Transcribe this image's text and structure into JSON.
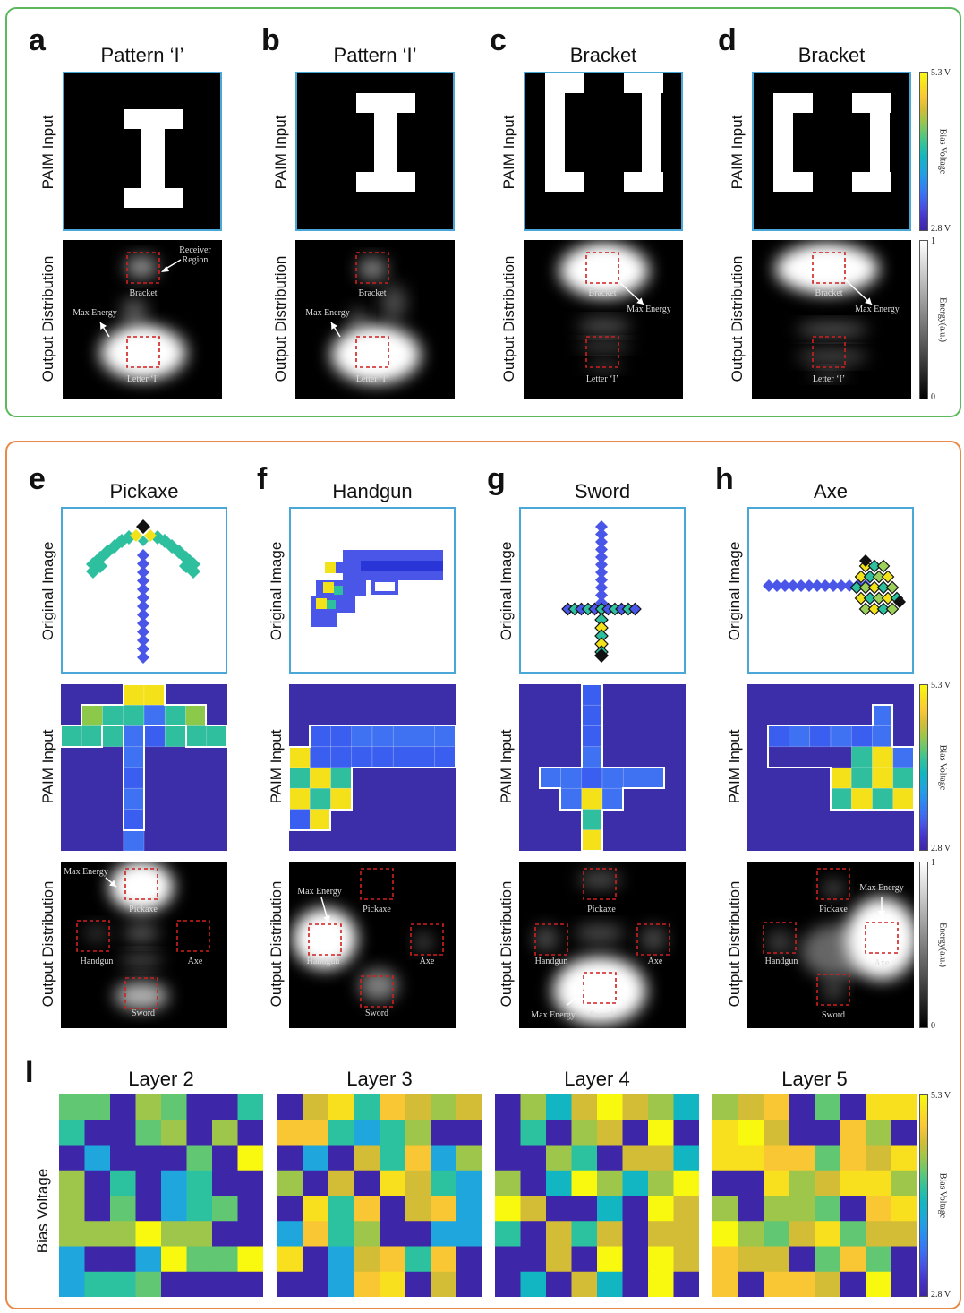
{
  "colors": {
    "green_frame": "#5cb85c",
    "orange_frame": "#e8894a",
    "input_border": "#4aa8d8",
    "receiver_box": "#d02020",
    "paim_bg": "#3c2ea8"
  },
  "top": {
    "panels": [
      {
        "letter": "a",
        "title": "Pattern ‘I’"
      },
      {
        "letter": "b",
        "title": "Pattern ‘I’"
      },
      {
        "letter": "c",
        "title": "Bracket"
      },
      {
        "letter": "d",
        "title": "Bracket"
      }
    ],
    "row_labels": {
      "input": "PAIM Input",
      "output": "Output Distribution"
    },
    "ann": {
      "receiver": "Receiver\nRegion",
      "bracket": "Bracket",
      "letter": "Letter ‘I’",
      "max_energy": "Max Energy"
    }
  },
  "mid": {
    "panels": [
      {
        "letter": "e",
        "title": "Pickaxe"
      },
      {
        "letter": "f",
        "title": "Handgun"
      },
      {
        "letter": "g",
        "title": "Sword"
      },
      {
        "letter": "h",
        "title": "Axe"
      }
    ],
    "row_labels": {
      "original": "Original Image",
      "input": "PAIM Input",
      "output": "Output Distribution"
    },
    "ann": {
      "pickaxe": "Pickaxe",
      "handgun": "Handgun",
      "axe": "Axe",
      "sword": "Sword",
      "max_energy": "Max Energy"
    }
  },
  "bottom": {
    "letter": "I",
    "row_label": "Bias Voltage",
    "layers": [
      "Layer 2",
      "Layer 3",
      "Layer 4",
      "Layer 5"
    ]
  },
  "colorbars": {
    "bias": {
      "top": "5.3 V",
      "bottom": "2.8 V",
      "label": "Bias Voltage"
    },
    "energy": {
      "top": "1",
      "bottom": "0",
      "label": "Energy(a.u.)"
    }
  }
}
